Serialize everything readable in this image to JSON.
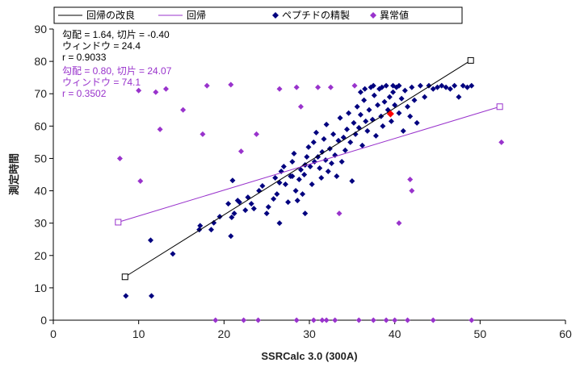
{
  "chart_data": {
    "type": "scatter",
    "title": "",
    "xlabel": "SSRCalc 3.0 (300A)",
    "ylabel": "測定時間",
    "xlim": [
      0,
      60
    ],
    "ylim": [
      0,
      90
    ],
    "xticks": [
      "0",
      "10",
      "20",
      "30",
      "40",
      "50",
      "60"
    ],
    "yticks": [
      "0",
      "10",
      "20",
      "30",
      "40",
      "50",
      "60",
      "70",
      "80",
      "90"
    ],
    "grid": false,
    "legend_position": "top",
    "legend": [
      {
        "label": "回帰の改良",
        "kind": "line",
        "color": "#000000"
      },
      {
        "label": "回帰",
        "kind": "line",
        "color": "#9933cc"
      },
      {
        "label": "ペプチドの精製",
        "kind": "diamond",
        "color": "#00007f"
      },
      {
        "label": "異常値",
        "kind": "diamond",
        "color": "#9933cc"
      }
    ],
    "stats_refined": {
      "slope_text": "勾配 = 1.64, 切片 = -0.40",
      "window_text": "ウィンドウ = 24.4",
      "r_text": "r = 0.9033",
      "color": "#000000"
    },
    "stats_regression": {
      "slope_text": "勾配 = 0.80, 切片 = 24.07",
      "window_text": "ウィンドウ = 74.1",
      "r_text": "r = 0.3502",
      "color": "#9933cc"
    },
    "lines": [
      {
        "name": "回帰の改良",
        "color": "#000000",
        "x": [
          8.4,
          48.9
        ],
        "y": [
          13.4,
          80.3
        ]
      },
      {
        "name": "回帰",
        "color": "#9933cc",
        "x": [
          7.6,
          52.3
        ],
        "y": [
          30.3,
          66.0
        ]
      }
    ],
    "highlight_point": {
      "x": 39.5,
      "y": 63.8,
      "color": "#ff0000"
    },
    "series": [
      {
        "name": "ペプチドの精製",
        "color": "#00007f",
        "points": [
          [
            8.5,
            7.5
          ],
          [
            11.5,
            7.5
          ],
          [
            11.4,
            24.7
          ],
          [
            14.0,
            20.5
          ],
          [
            17.1,
            28.0
          ],
          [
            17.2,
            29.2
          ],
          [
            18.5,
            28.0
          ],
          [
            18.8,
            30.1
          ],
          [
            19.5,
            32.0
          ],
          [
            20.5,
            36.0
          ],
          [
            20.8,
            26.0
          ],
          [
            20.9,
            31.8
          ],
          [
            21.0,
            43.2
          ],
          [
            21.2,
            33.0
          ],
          [
            21.6,
            37.0
          ],
          [
            21.8,
            36.5
          ],
          [
            22.5,
            34.0
          ],
          [
            22.8,
            38.0
          ],
          [
            23.2,
            36.0
          ],
          [
            23.5,
            34.5
          ],
          [
            24.1,
            40.0
          ],
          [
            24.5,
            41.5
          ],
          [
            25.0,
            33.0
          ],
          [
            25.2,
            35.0
          ],
          [
            25.8,
            37.5
          ],
          [
            26.0,
            44.0
          ],
          [
            26.2,
            39.0
          ],
          [
            26.5,
            42.5
          ],
          [
            26.7,
            46.0
          ],
          [
            27.0,
            47.5
          ],
          [
            27.2,
            42.0
          ],
          [
            27.5,
            36.5
          ],
          [
            27.8,
            44.5
          ],
          [
            28.0,
            49.0
          ],
          [
            28.2,
            51.5
          ],
          [
            28.4,
            40.0
          ],
          [
            28.6,
            37.0
          ],
          [
            28.8,
            43.5
          ],
          [
            29.0,
            46.5
          ],
          [
            29.2,
            39.0
          ],
          [
            29.4,
            45.0
          ],
          [
            29.5,
            48.0
          ],
          [
            29.7,
            50.5
          ],
          [
            29.9,
            53.5
          ],
          [
            30.1,
            47.5
          ],
          [
            30.3,
            42.0
          ],
          [
            30.5,
            55.0
          ],
          [
            30.6,
            49.0
          ],
          [
            30.8,
            58.0
          ],
          [
            31.0,
            50.5
          ],
          [
            31.2,
            47.0
          ],
          [
            31.4,
            44.0
          ],
          [
            31.5,
            52.0
          ],
          [
            31.7,
            56.0
          ],
          [
            31.9,
            49.5
          ],
          [
            32.0,
            60.5
          ],
          [
            32.2,
            46.0
          ],
          [
            32.4,
            53.0
          ],
          [
            32.6,
            48.5
          ],
          [
            32.8,
            57.5
          ],
          [
            33.0,
            51.0
          ],
          [
            33.2,
            44.5
          ],
          [
            33.4,
            55.5
          ],
          [
            33.6,
            62.5
          ],
          [
            33.8,
            49.0
          ],
          [
            34.0,
            56.5
          ],
          [
            34.2,
            52.5
          ],
          [
            34.4,
            59.0
          ],
          [
            34.6,
            64.0
          ],
          [
            34.8,
            55.0
          ],
          [
            35.0,
            43.0
          ],
          [
            35.2,
            61.0
          ],
          [
            35.4,
            57.5
          ],
          [
            35.6,
            66.0
          ],
          [
            35.8,
            59.5
          ],
          [
            36.0,
            63.5
          ],
          [
            36.2,
            54.0
          ],
          [
            36.4,
            68.0
          ],
          [
            36.6,
            61.5
          ],
          [
            36.8,
            58.5
          ],
          [
            37.0,
            65.0
          ],
          [
            37.2,
            72.0
          ],
          [
            37.4,
            62.0
          ],
          [
            37.6,
            69.5
          ],
          [
            37.8,
            57.0
          ],
          [
            38.0,
            66.5
          ],
          [
            38.2,
            71.5
          ],
          [
            38.4,
            63.0
          ],
          [
            38.6,
            60.0
          ],
          [
            38.8,
            67.5
          ],
          [
            39.0,
            72.5
          ],
          [
            39.2,
            65.0
          ],
          [
            39.4,
            69.0
          ],
          [
            39.6,
            61.5
          ],
          [
            39.8,
            70.5
          ],
          [
            40.0,
            66.5
          ],
          [
            40.2,
            72.0
          ],
          [
            40.5,
            64.0
          ],
          [
            40.8,
            68.5
          ],
          [
            41.0,
            58.5
          ],
          [
            41.2,
            71.0
          ],
          [
            41.5,
            66.0
          ],
          [
            41.8,
            63.0
          ],
          [
            42.0,
            72.0
          ],
          [
            42.3,
            68.0
          ],
          [
            42.6,
            61.0
          ],
          [
            43.0,
            72.5
          ],
          [
            43.5,
            69.0
          ],
          [
            44.0,
            72.5
          ],
          [
            44.5,
            71.5
          ],
          [
            45.0,
            72.0
          ],
          [
            45.5,
            72.5
          ],
          [
            46.0,
            72.0
          ],
          [
            46.5,
            71.5
          ],
          [
            47.0,
            72.5
          ],
          [
            47.5,
            69.0
          ],
          [
            48.0,
            72.5
          ],
          [
            48.5,
            72.0
          ],
          [
            49.0,
            72.5
          ],
          [
            36.0,
            70.5
          ],
          [
            36.5,
            71.5
          ],
          [
            37.5,
            72.5
          ],
          [
            38.5,
            72.0
          ],
          [
            39.8,
            72.5
          ],
          [
            40.5,
            72.5
          ],
          [
            26.5,
            30.0
          ],
          [
            28.0,
            44.5
          ],
          [
            29.5,
            33.0
          ]
        ]
      },
      {
        "name": "異常値",
        "color": "#9933cc",
        "points": [
          [
            7.8,
            50.0
          ],
          [
            10.0,
            71.0
          ],
          [
            10.2,
            43.0
          ],
          [
            12.0,
            70.5
          ],
          [
            12.5,
            59.0
          ],
          [
            13.2,
            71.5
          ],
          [
            15.2,
            65.0
          ],
          [
            17.5,
            57.5
          ],
          [
            18.0,
            72.5
          ],
          [
            20.8,
            72.8
          ],
          [
            22.0,
            52.2
          ],
          [
            23.8,
            57.5
          ],
          [
            26.5,
            71.5
          ],
          [
            28.5,
            72.0
          ],
          [
            29.0,
            66.0
          ],
          [
            31.0,
            72.0
          ],
          [
            32.5,
            72.0
          ],
          [
            33.5,
            33.0
          ],
          [
            35.3,
            72.5
          ],
          [
            40.5,
            30.0
          ],
          [
            41.8,
            43.5
          ],
          [
            42.0,
            40.0
          ],
          [
            52.5,
            55.0
          ],
          [
            19.0,
            0.0
          ],
          [
            22.3,
            0.0
          ],
          [
            24.0,
            0.0
          ],
          [
            28.5,
            0.0
          ],
          [
            30.5,
            0.0
          ],
          [
            31.5,
            0.0
          ],
          [
            32.0,
            0.0
          ],
          [
            33.0,
            0.0
          ],
          [
            35.8,
            0.0
          ],
          [
            37.5,
            0.0
          ],
          [
            39.0,
            0.0
          ],
          [
            40.0,
            0.0
          ],
          [
            41.5,
            0.0
          ],
          [
            44.5,
            0.0
          ],
          [
            49.0,
            0.0
          ]
        ]
      }
    ]
  }
}
